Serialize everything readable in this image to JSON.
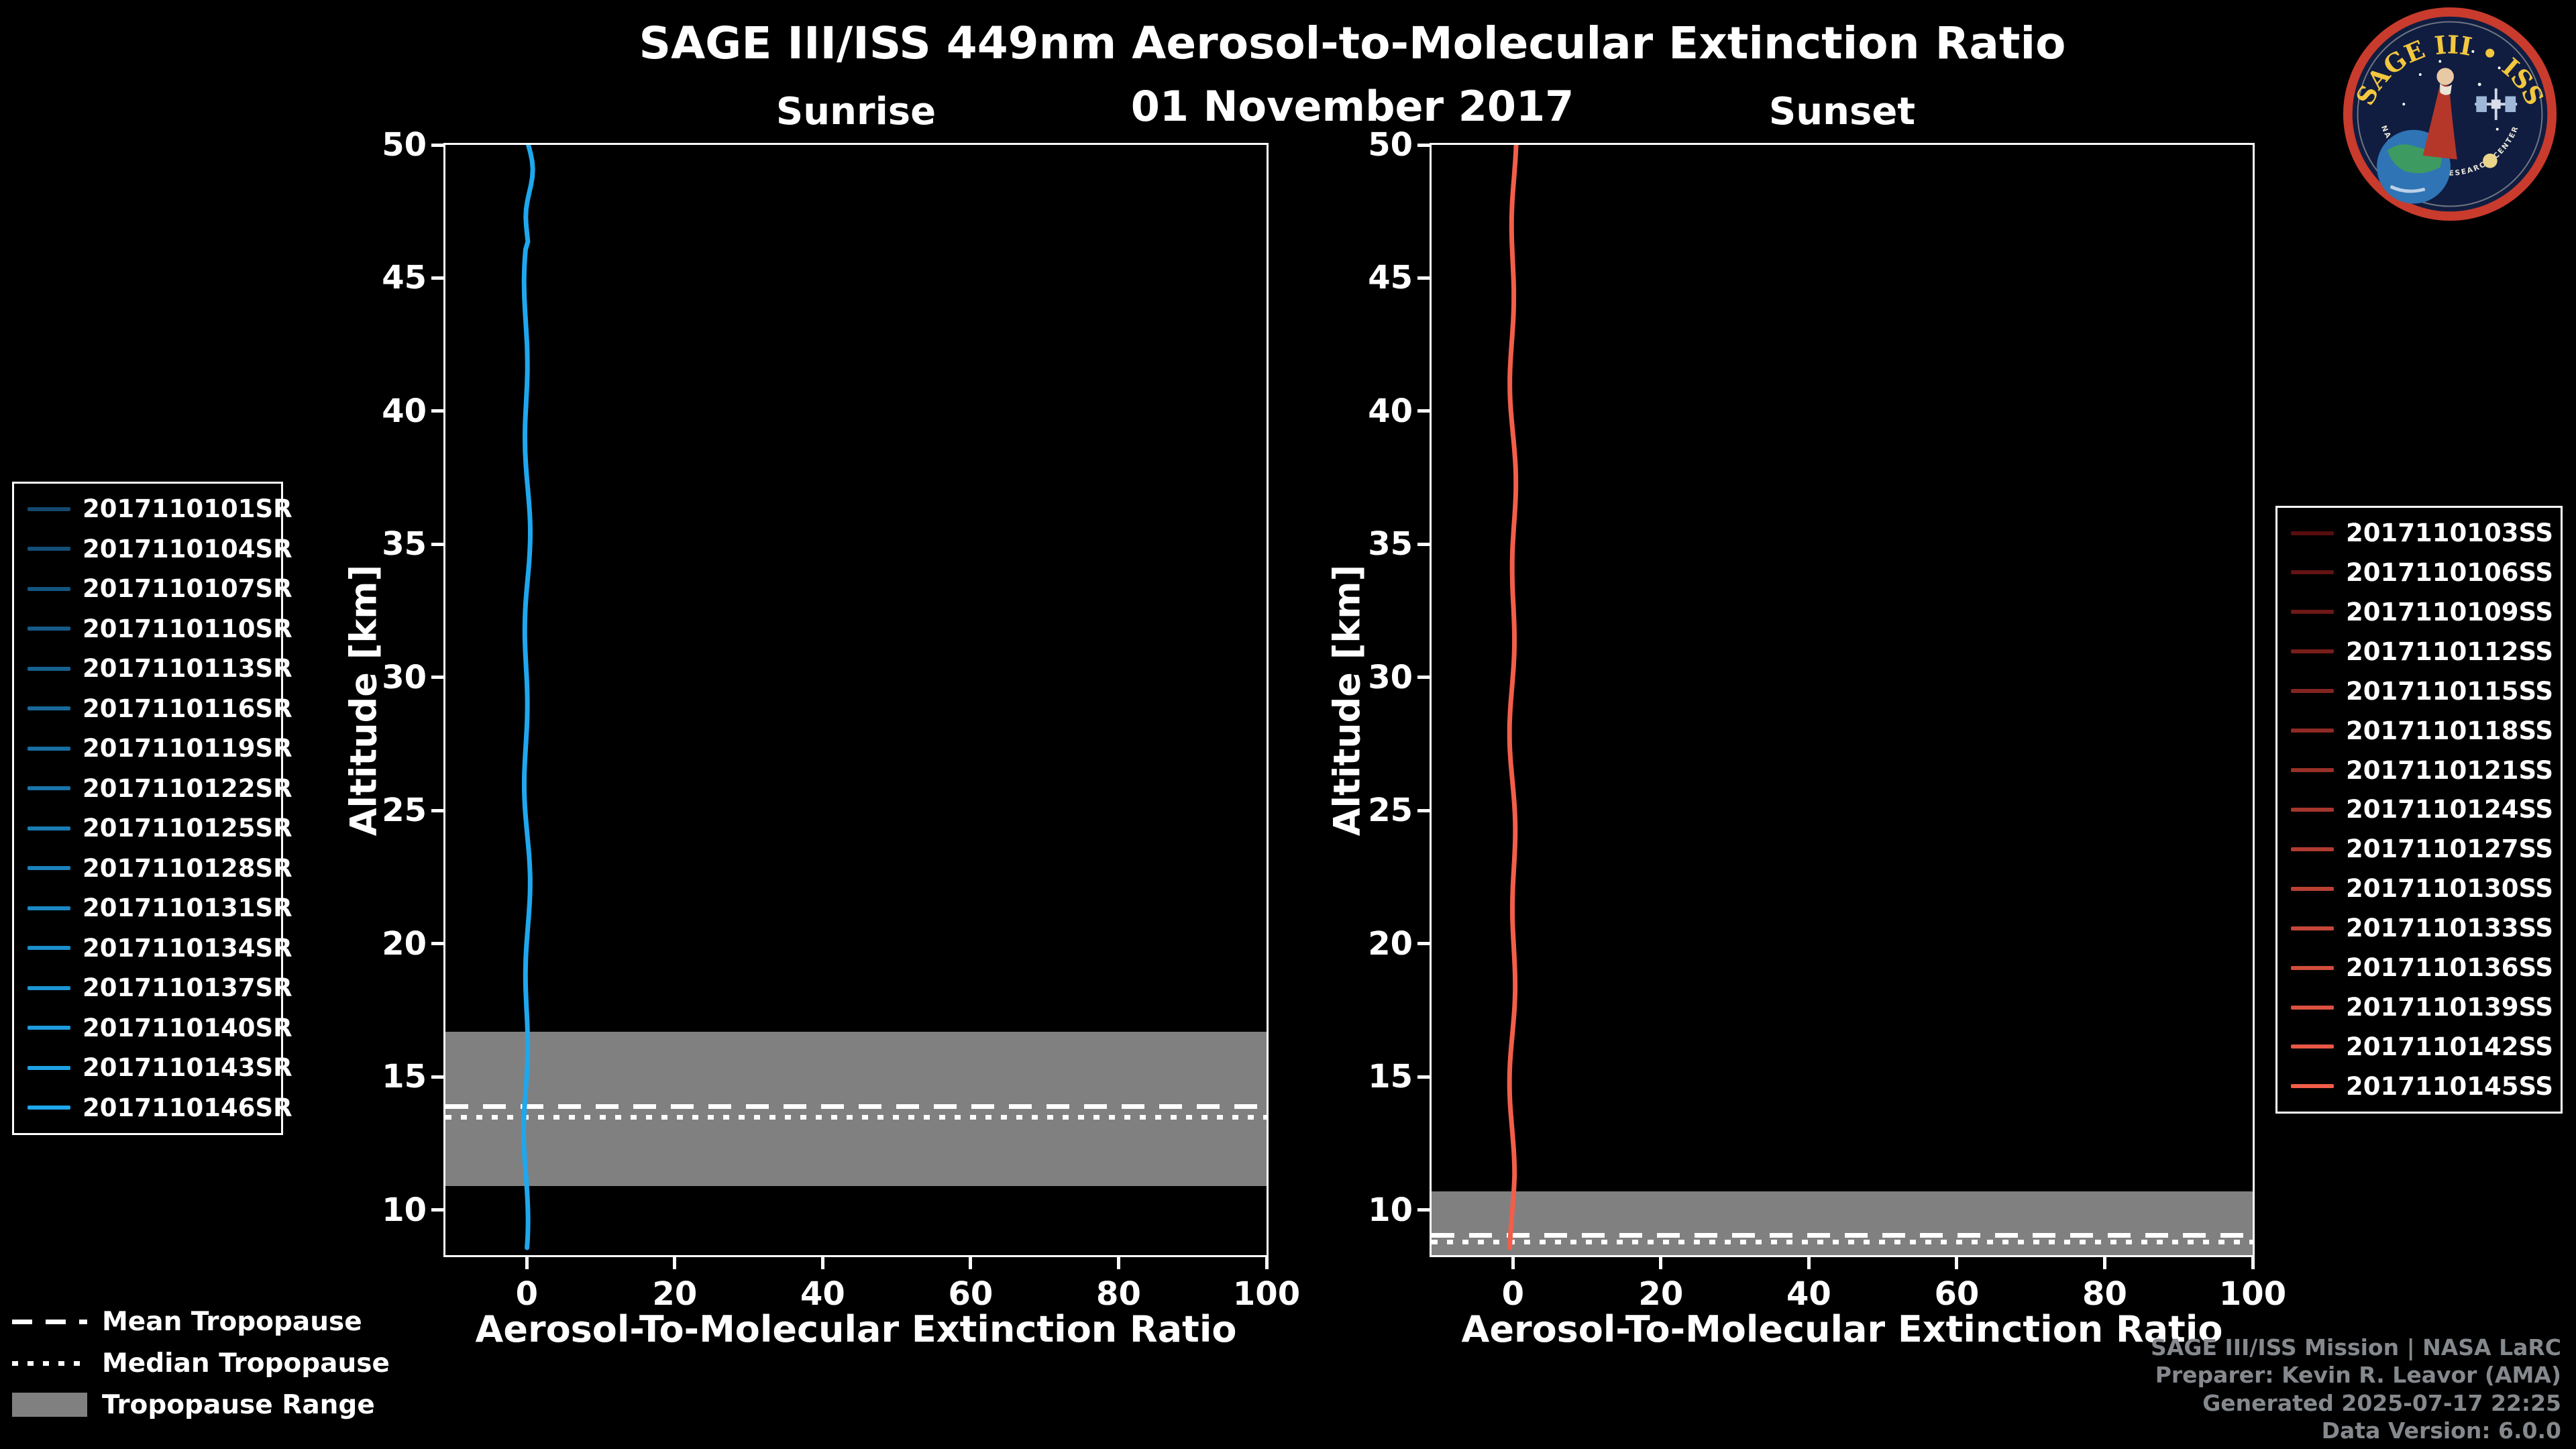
{
  "title": "SAGE III/ISS 449nm Aerosol-to-Molecular Extinction Ratio",
  "subtitle": "01 November 2017",
  "logo": {
    "title": "SAGE III • ISS",
    "ring_text": "NASA LANGLEY RESEARCH CENTER"
  },
  "credits": {
    "lines": [
      "SAGE III/ISS Mission | NASA LaRC",
      "Preparer: Kevin R. Leavor (AMA)",
      "Generated 2025-07-17 22:25",
      "Data Version: 6.0.0"
    ]
  },
  "tropopause_legend": {
    "mean": "Mean Tropopause",
    "median": "Median Tropopause",
    "range": "Tropopause Range"
  },
  "colors": {
    "background": "#000000",
    "foreground": "#ffffff",
    "tropopause_band": "#808080",
    "sunrise_profile": "#1fa7ee",
    "sunset_profile": "#f25e49"
  },
  "chart_data": [
    {
      "type": "line",
      "panel": "sunrise",
      "title": "Sunrise",
      "xlabel": "Aerosol-To-Molecular Extinction Ratio",
      "ylabel": "Altitude [km]",
      "xlim": [
        -11,
        100
      ],
      "ylim": [
        8.3,
        50
      ],
      "xticks": [
        0,
        20,
        40,
        60,
        80,
        100
      ],
      "yticks": [
        10,
        15,
        20,
        25,
        30,
        35,
        40,
        45,
        50
      ],
      "grid": false,
      "legend_position": "outside-left",
      "profile_color": "#1fa7ee",
      "profile_note": "All 16 sunrise profiles lie at extinction ratio ~0 from 8.3 to 50 km",
      "tropopause": {
        "mean_km": 13.9,
        "median_km": 13.5,
        "range_top_km": 16.7,
        "range_bottom_km": 10.9
      },
      "series": [
        {
          "label": "2017110101SR",
          "color": "#14486e"
        },
        {
          "label": "2017110104SR",
          "color": "#154e77"
        },
        {
          "label": "2017110107SR",
          "color": "#15557f"
        },
        {
          "label": "2017110110SR",
          "color": "#165b88"
        },
        {
          "label": "2017110113SR",
          "color": "#176190"
        },
        {
          "label": "2017110116SR",
          "color": "#186899"
        },
        {
          "label": "2017110119SR",
          "color": "#186ea1"
        },
        {
          "label": "2017110122SR",
          "color": "#1974aa"
        },
        {
          "label": "2017110125SR",
          "color": "#1a7bb2"
        },
        {
          "label": "2017110128SR",
          "color": "#1b81bb"
        },
        {
          "label": "2017110131SR",
          "color": "#1b87c3"
        },
        {
          "label": "2017110134SR",
          "color": "#1c8ecc"
        },
        {
          "label": "2017110137SR",
          "color": "#1d94d4"
        },
        {
          "label": "2017110140SR",
          "color": "#1e9add"
        },
        {
          "label": "2017110143SR",
          "color": "#1ea1e5"
        },
        {
          "label": "2017110146SR",
          "color": "#1fa7ee"
        }
      ]
    },
    {
      "type": "line",
      "panel": "sunset",
      "title": "Sunset",
      "xlabel": "Aerosol-To-Molecular Extinction Ratio",
      "ylabel": "Altitude [km]",
      "xlim": [
        -11,
        100
      ],
      "ylim": [
        8.3,
        50
      ],
      "xticks": [
        0,
        20,
        40,
        60,
        80,
        100
      ],
      "yticks": [
        10,
        15,
        20,
        25,
        30,
        35,
        40,
        45,
        50
      ],
      "grid": false,
      "legend_position": "outside-right",
      "profile_color": "#f25e49",
      "profile_note": "All 15 sunset profiles lie at extinction ratio ~0 from 8.3 to 50 km",
      "tropopause": {
        "mean_km": 9.05,
        "median_km": 8.8,
        "range_top_km": 10.7,
        "range_bottom_km": 8.3
      },
      "series": [
        {
          "label": "2017110103SS",
          "color": "#570d0e"
        },
        {
          "label": "2017110106SS",
          "color": "#621312"
        },
        {
          "label": "2017110109SS",
          "color": "#6d1916"
        },
        {
          "label": "2017110112SS",
          "color": "#781e1b"
        },
        {
          "label": "2017110115SS",
          "color": "#83241f"
        },
        {
          "label": "2017110118SS",
          "color": "#8e2a23"
        },
        {
          "label": "2017110121SS",
          "color": "#993027"
        },
        {
          "label": "2017110124SS",
          "color": "#a5362c"
        },
        {
          "label": "2017110127SS",
          "color": "#b03b30"
        },
        {
          "label": "2017110130SS",
          "color": "#bb4134"
        },
        {
          "label": "2017110133SS",
          "color": "#c64738"
        },
        {
          "label": "2017110136SS",
          "color": "#d14d3c"
        },
        {
          "label": "2017110139SS",
          "color": "#dc5241"
        },
        {
          "label": "2017110142SS",
          "color": "#e75845"
        },
        {
          "label": "2017110145SS",
          "color": "#f25e49"
        }
      ]
    }
  ]
}
